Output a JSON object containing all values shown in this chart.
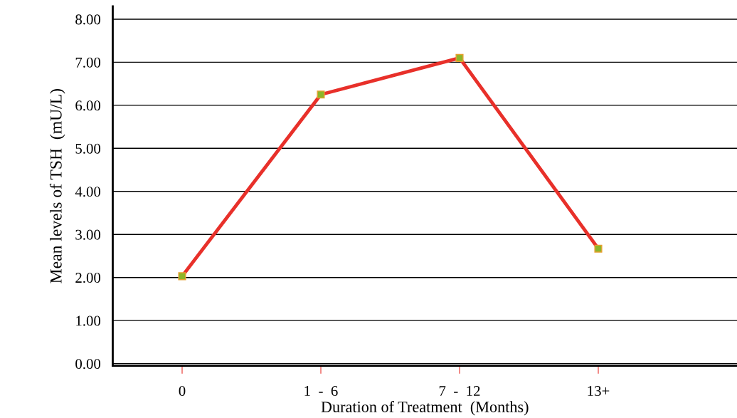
{
  "chart_data": {
    "type": "line",
    "xlabel": "Duration of Treatment  (Months)",
    "ylabel": "Mean levels of TSH  (mU/L)",
    "categories": [
      "0",
      "1  -  6",
      "7  -  12",
      "13+"
    ],
    "series": [
      {
        "color": "#e8302a",
        "values": [
          2.03,
          6.25,
          7.1,
          2.67
        ]
      }
    ],
    "ylim": [
      -0.05,
      8.3
    ],
    "yticks": [
      {
        "value": 0,
        "label": "0.00"
      },
      {
        "value": 1,
        "label": "1.00"
      },
      {
        "value": 2,
        "label": "2.00"
      },
      {
        "value": 3,
        "label": "3.00"
      },
      {
        "value": 4,
        "label": "4.00"
      },
      {
        "value": 5,
        "label": "5.00"
      },
      {
        "value": 6,
        "label": "6.00"
      },
      {
        "value": 7,
        "label": "7.00"
      },
      {
        "value": 8,
        "label": "8.00"
      }
    ],
    "grid": "y",
    "marker": "square",
    "line_style": "solid"
  }
}
